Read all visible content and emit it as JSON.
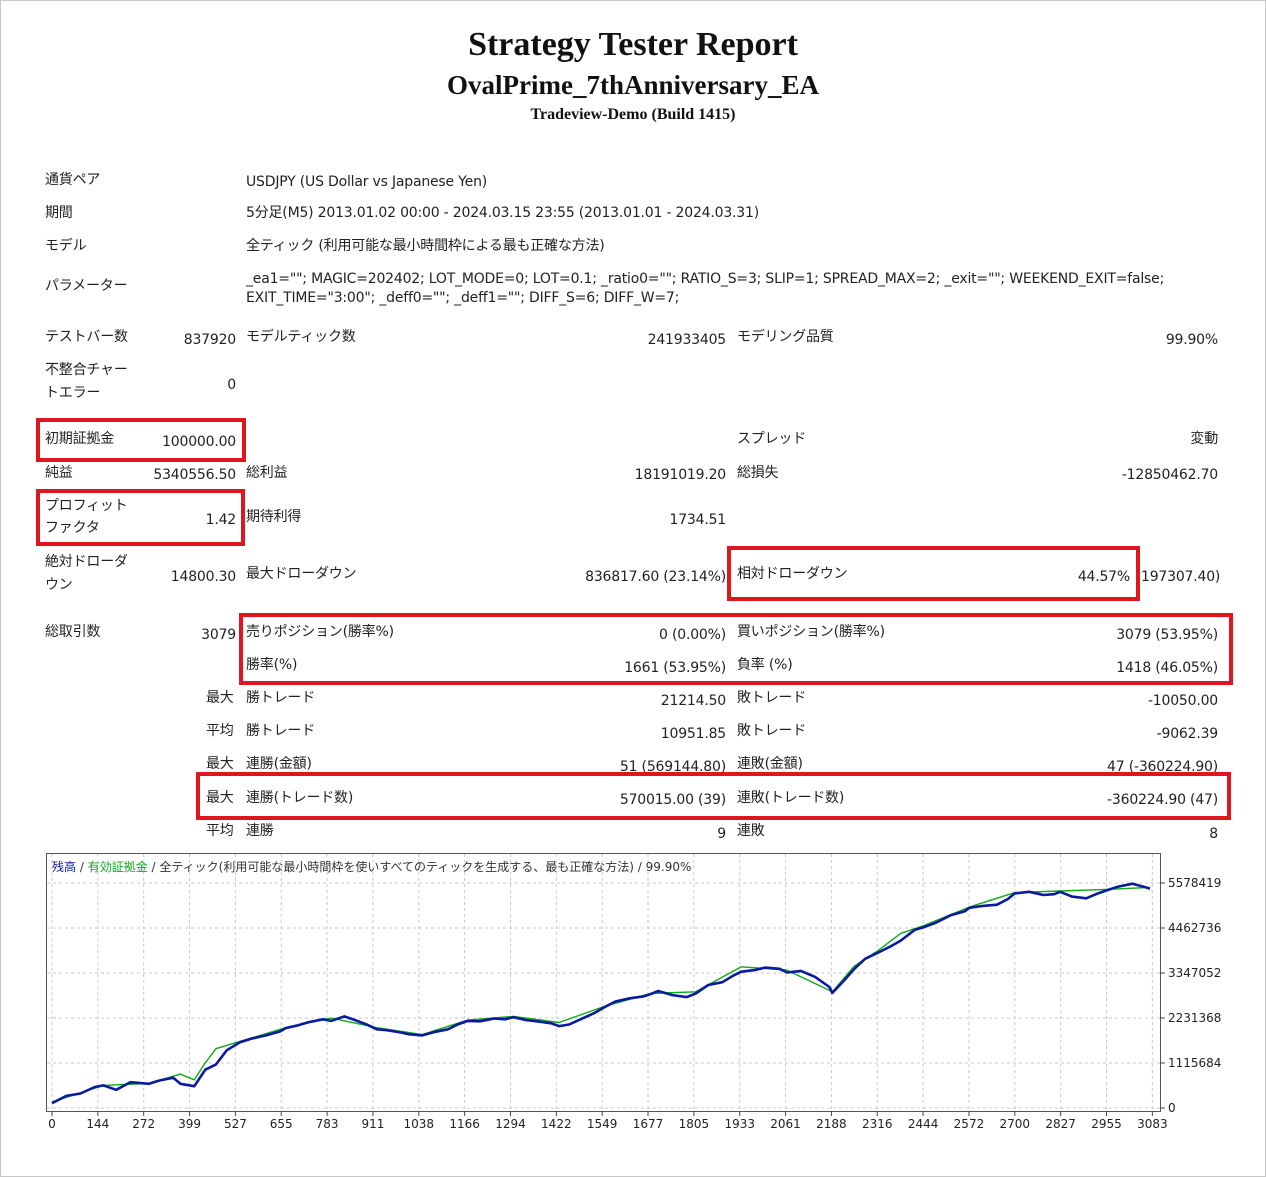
{
  "header": {
    "title": "Strategy Tester Report",
    "ea_name": "OvalPrime_7thAnniversary_EA",
    "server": "Tradeview-Demo (Build 1415)"
  },
  "settings": {
    "symbol_label": "通貨ペア",
    "symbol_value": "USDJPY (US Dollar vs Japanese Yen)",
    "period_label": "期間",
    "period_value": "5分足(M5) 2013.01.02 00:00 - 2024.03.15 23:55 (2013.01.01 - 2024.03.31)",
    "model_label": "モデル",
    "model_value": "全ティック (利用可能な最小時間枠による最も正確な方法)",
    "params_label": "パラメーター",
    "params_line1": "_ea1=\"\"; MAGIC=202402; LOT_MODE=0; LOT=0.1; _ratio0=\"\"; RATIO_S=3; SLIP=1; SPREAD_MAX=2; _exit=\"\"; WEEKEND_EXIT=false;",
    "params_line2": "EXIT_TIME=\"3:00\"; _deff0=\"\"; _deff1=\"\"; DIFF_S=6; DIFF_W=7;"
  },
  "stats": {
    "bars_label": "テストバー数",
    "bars_value": "837920",
    "ticks_label": "モデルティック数",
    "ticks_value": "241933405",
    "quality_label": "モデリング品質",
    "quality_value": "99.90%",
    "mismatch_label_1": "不整合チャー",
    "mismatch_label_2": "トエラー",
    "mismatch_value": "0",
    "deposit_label": "初期証拠金",
    "deposit_value": "100000.00",
    "spread_label": "スプレッド",
    "spread_value": "変動",
    "net_label": "純益",
    "net_value": "5340556.50",
    "gross_profit_label": "総利益",
    "gross_profit_value": "18191019.20",
    "gross_loss_label": "総損失",
    "gross_loss_value": "-12850462.70",
    "pf_label_1": "プロフィット",
    "pf_label_2": "ファクタ",
    "pf_value": "1.42",
    "expected_label": "期待利得",
    "expected_value": "1734.51",
    "abs_dd_label_1": "絶対ドローダ",
    "abs_dd_label_2": "ウン",
    "abs_dd_value": "14800.30",
    "max_dd_label": "最大ドローダウン",
    "max_dd_value": "836817.60 (23.14%)",
    "rel_dd_label": "相対ドローダウン",
    "rel_dd_value": "44.57%",
    "rel_dd_value2": "197307.40)",
    "trades_label": "総取引数",
    "trades_value": "3079",
    "short_label": "売りポジション(勝率%)",
    "short_value": "0 (0.00%)",
    "long_label": "買いポジション(勝率%)",
    "long_value": "3079 (53.95%)",
    "winrate_label": "勝率(%)",
    "winrate_value": "1661 (53.95%)",
    "lossrate_label": "負率 (%)",
    "lossrate_value": "1418 (46.05%)",
    "max_word": "最大",
    "avg_word": "平均",
    "largest_win_label": "勝トレード",
    "largest_win_value": "21214.50",
    "largest_loss_label": "敗トレード",
    "largest_loss_value": "-10050.00",
    "avg_win_label": "勝トレード",
    "avg_win_value": "10951.85",
    "avg_loss_label": "敗トレード",
    "avg_loss_value": "-9062.39",
    "max_cons_win_amt_label": "連勝(金額)",
    "max_cons_win_amt_value": "51 (569144.80)",
    "max_cons_loss_amt_label": "連敗(金額)",
    "max_cons_loss_amt_value": "47 (-360224.90)",
    "max_cons_win_cnt_label": "連勝(トレード数)",
    "max_cons_win_cnt_value": "570015.00 (39)",
    "max_cons_loss_cnt_label": "連敗(トレード数)",
    "max_cons_loss_cnt_value": "-360224.90 (47)",
    "avg_cons_win_label": "連勝",
    "avg_cons_win_value": "9",
    "avg_cons_loss_label": "連敗",
    "avg_cons_loss_value": "8"
  },
  "colors": {
    "balance": "#0a1aa0",
    "equity": "#11a81a",
    "highlight": "#e0161f"
  },
  "chart_data": {
    "type": "line",
    "legend_balance": "残高",
    "legend_sep": " / ",
    "legend_equity": "有効証拠金",
    "legend_rest": " / 全ティック(利用可能な最小時間枠を使いすべてのティックを生成する、最も正確な方法) / 99.90%",
    "x_ticks": [
      "0",
      "144",
      "272",
      "399",
      "527",
      "655",
      "783",
      "911",
      "1038",
      "1166",
      "1294",
      "1422",
      "1549",
      "1677",
      "1805",
      "1933",
      "2061",
      "2188",
      "2316",
      "2444",
      "2572",
      "2700",
      "2827",
      "2955",
      "3083"
    ],
    "y_ticks": [
      "0",
      "1115684",
      "2231368",
      "3347052",
      "4462736",
      "5578419"
    ],
    "xlim": [
      0,
      3079
    ],
    "ylim": [
      0,
      5578419
    ],
    "series": [
      {
        "name": "残高",
        "x": [
          0,
          40,
          80,
          120,
          144,
          180,
          220,
          272,
          300,
          340,
          360,
          399,
          430,
          460,
          490,
          527,
          560,
          600,
          640,
          655,
          690,
          720,
          760,
          783,
          820,
          850,
          880,
          911,
          940,
          980,
          1000,
          1038,
          1070,
          1110,
          1140,
          1166,
          1200,
          1240,
          1270,
          1294,
          1330,
          1360,
          1400,
          1422,
          1450,
          1490,
          1520,
          1549,
          1580,
          1620,
          1660,
          1677,
          1700,
          1740,
          1780,
          1805,
          1840,
          1880,
          1910,
          1933,
          1970,
          2000,
          2040,
          2061,
          2100,
          2140,
          2180,
          2188,
          2220,
          2250,
          2280,
          2316,
          2350,
          2380,
          2420,
          2444,
          2480,
          2520,
          2560,
          2572,
          2610,
          2650,
          2680,
          2700,
          2740,
          2780,
          2810,
          2827,
          2860,
          2900,
          2930,
          2955,
          2990,
          3030,
          3060,
          3079
        ],
        "y": [
          120000,
          300000,
          360000,
          520000,
          560000,
          450000,
          640000,
          600000,
          680000,
          750000,
          600000,
          540000,
          950000,
          1080000,
          1430000,
          1630000,
          1720000,
          1800000,
          1900000,
          1980000,
          2050000,
          2130000,
          2200000,
          2160000,
          2270000,
          2180000,
          2080000,
          1950000,
          1930000,
          1870000,
          1830000,
          1800000,
          1880000,
          1950000,
          2080000,
          2160000,
          2150000,
          2220000,
          2200000,
          2250000,
          2180000,
          2150000,
          2100000,
          2030000,
          2070000,
          2230000,
          2350000,
          2500000,
          2640000,
          2720000,
          2770000,
          2820000,
          2900000,
          2800000,
          2750000,
          2840000,
          3050000,
          3120000,
          3280000,
          3380000,
          3420000,
          3480000,
          3450000,
          3360000,
          3400000,
          3250000,
          3000000,
          2850000,
          3150000,
          3450000,
          3700000,
          3850000,
          4000000,
          4150000,
          4420000,
          4480000,
          4600000,
          4780000,
          4880000,
          4960000,
          5010000,
          5040000,
          5180000,
          5320000,
          5360000,
          5280000,
          5300000,
          5360000,
          5240000,
          5200000,
          5310000,
          5390000,
          5490000,
          5560000,
          5490000,
          5440000
        ]
      },
      {
        "name": "有効証拠金",
        "x": [
          0,
          144,
          272,
          360,
          399,
          430,
          460,
          527,
          655,
          783,
          911,
          1038,
          1166,
          1294,
          1422,
          1549,
          1677,
          1805,
          1933,
          2061,
          2188,
          2250,
          2316,
          2380,
          2444,
          2572,
          2700,
          2827,
          2955,
          3079
        ],
        "y": [
          150000,
          560000,
          610000,
          840000,
          700000,
          1120000,
          1470000,
          1650000,
          1990000,
          2230000,
          1990000,
          1820000,
          2180000,
          2270000,
          2120000,
          2520000,
          2840000,
          2880000,
          3500000,
          3420000,
          2880000,
          3520000,
          3900000,
          4330000,
          4520000,
          4980000,
          5340000,
          5380000,
          5420000,
          5470000
        ]
      }
    ]
  }
}
